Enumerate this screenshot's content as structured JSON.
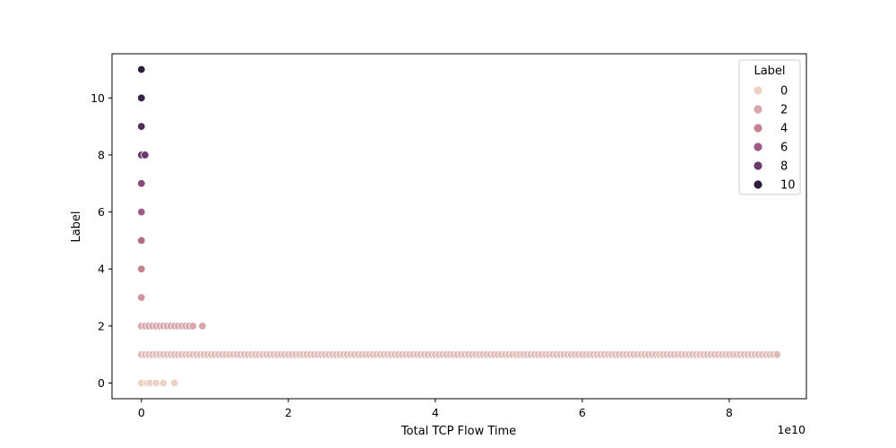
{
  "chart_data": {
    "type": "scatter",
    "title": "",
    "xlabel": "Total TCP Flow Time",
    "ylabel": "Label",
    "x_offset_text": "1e10",
    "x_scale_multiplier": 10000000000,
    "xlim": [
      -0.4,
      9.05
    ],
    "ylim": [
      -0.55,
      11.55
    ],
    "xticks": [
      0,
      2,
      4,
      6,
      8
    ],
    "yticks": [
      0,
      2,
      4,
      6,
      8,
      10
    ],
    "grid": false,
    "legend": {
      "title": "Label",
      "position": "top-right",
      "entries": [
        {
          "label": "0",
          "color": "#ecd3c5"
        },
        {
          "label": "2",
          "color": "#d7a7ab"
        },
        {
          "label": "4",
          "color": "#c4818e"
        },
        {
          "label": "6",
          "color": "#9d5b85"
        },
        {
          "label": "8",
          "color": "#6c3b6b"
        },
        {
          "label": "10",
          "color": "#2e1e3b"
        }
      ]
    },
    "series": [
      {
        "label_value": 0,
        "color": "#ecd3c5",
        "points": [
          [
            0.0,
            0
          ],
          [
            0.08,
            0
          ],
          [
            0.12,
            0
          ],
          [
            0.2,
            0
          ],
          [
            0.3,
            0
          ],
          [
            0.45,
            0
          ]
        ]
      },
      {
        "label_value": 1,
        "color": "#e2bdb8",
        "x_range": [
          0.0,
          8.65
        ],
        "x_step": 0.05
      },
      {
        "label_value": 2,
        "color": "#d7a7ab",
        "points": [
          [
            0.0,
            2
          ],
          [
            0.05,
            2
          ],
          [
            0.1,
            2
          ],
          [
            0.15,
            2
          ],
          [
            0.2,
            2
          ],
          [
            0.25,
            2
          ],
          [
            0.3,
            2
          ],
          [
            0.35,
            2
          ],
          [
            0.4,
            2
          ],
          [
            0.45,
            2
          ],
          [
            0.5,
            2
          ],
          [
            0.55,
            2
          ],
          [
            0.6,
            2
          ],
          [
            0.65,
            2
          ],
          [
            0.7,
            2
          ],
          [
            0.83,
            2
          ]
        ]
      },
      {
        "label_value": 3,
        "color": "#ce969d",
        "points": [
          [
            0.0,
            3
          ]
        ]
      },
      {
        "label_value": 4,
        "color": "#c4818e",
        "points": [
          [
            0.0,
            4
          ]
        ]
      },
      {
        "label_value": 5,
        "color": "#b06e89",
        "points": [
          [
            0.0,
            5
          ]
        ]
      },
      {
        "label_value": 6,
        "color": "#9d5b85",
        "points": [
          [
            0.0,
            6
          ]
        ]
      },
      {
        "label_value": 7,
        "color": "#844a79",
        "points": [
          [
            0.0,
            7
          ]
        ]
      },
      {
        "label_value": 8,
        "color": "#6c3b6b",
        "points": [
          [
            0.0,
            8
          ],
          [
            0.05,
            8
          ]
        ]
      },
      {
        "label_value": 9,
        "color": "#502b56",
        "points": [
          [
            0.0,
            9
          ]
        ]
      },
      {
        "label_value": 10,
        "color": "#3c2447",
        "points": [
          [
            0.0,
            10
          ]
        ]
      },
      {
        "label_value": 11,
        "color": "#2e1e3b",
        "points": [
          [
            0.0,
            11
          ]
        ]
      }
    ]
  }
}
